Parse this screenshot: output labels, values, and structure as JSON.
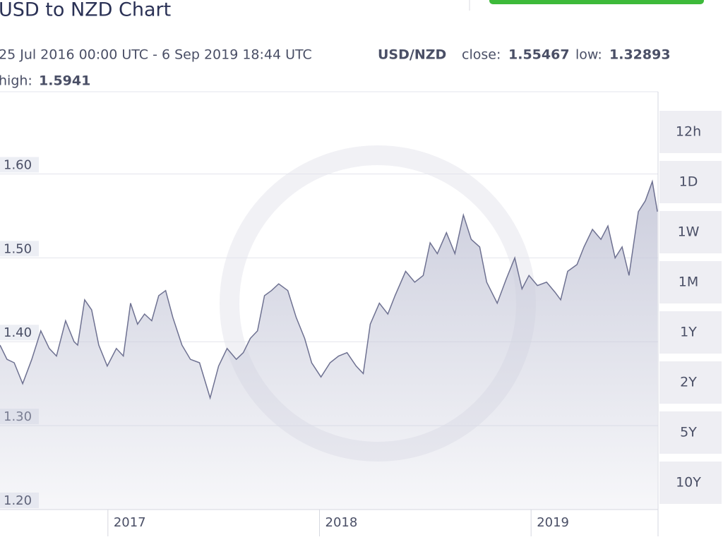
{
  "chart_data": {
    "type": "area",
    "title": "USD to NZD Chart",
    "subtitle": "25 Jul 2016 00:00 UTC - 6 Sep 2019 18:44 UTC",
    "pair": "USD/NZD",
    "stats": [
      {
        "label": "close:",
        "value": 1.55467
      },
      {
        "label": "low:",
        "value": 1.32893
      },
      {
        "label": "high:",
        "value": 1.5941
      }
    ],
    "ranges": [
      "12h",
      "1D",
      "1W",
      "1M",
      "1Y",
      "2Y",
      "5Y",
      "10Y"
    ],
    "color": "#6e7191",
    "fill": "#c9cbdb",
    "x": [
      2016.49,
      2016.523,
      2016.557,
      2016.597,
      2016.64,
      2016.683,
      2016.723,
      2016.757,
      2016.8,
      2016.84,
      2016.857,
      2016.89,
      2016.923,
      2016.957,
      2016.997,
      2017.04,
      2017.073,
      2017.107,
      2017.14,
      2017.173,
      2017.207,
      2017.24,
      2017.273,
      2017.307,
      2017.35,
      2017.39,
      2017.433,
      2017.483,
      2017.523,
      2017.563,
      2017.607,
      2017.64,
      2017.673,
      2017.707,
      2017.74,
      2017.773,
      2017.807,
      2017.85,
      2017.89,
      2017.93,
      2017.963,
      2018.007,
      2018.05,
      2018.09,
      2018.13,
      2018.173,
      2018.207,
      2018.24,
      2018.283,
      2018.323,
      2018.357,
      2018.407,
      2018.45,
      2018.49,
      2018.523,
      2018.557,
      2018.6,
      2018.64,
      2018.68,
      2018.717,
      2018.757,
      2018.79,
      2018.84,
      2018.883,
      2018.923,
      2018.957,
      2018.99,
      2019.03,
      2019.073,
      2019.113,
      2019.14,
      2019.173,
      2019.217,
      2019.25,
      2019.29,
      2019.33,
      2019.363,
      2019.397,
      2019.43,
      2019.463,
      2019.507,
      2019.54,
      2019.573,
      2019.597
    ],
    "values": [
      1.396,
      1.379,
      1.375,
      1.35,
      1.379,
      1.413,
      1.392,
      1.383,
      1.425,
      1.4,
      1.396,
      1.45,
      1.438,
      1.396,
      1.371,
      1.392,
      1.383,
      1.446,
      1.421,
      1.433,
      1.425,
      1.455,
      1.461,
      1.429,
      1.396,
      1.379,
      1.375,
      1.333,
      1.371,
      1.392,
      1.379,
      1.387,
      1.404,
      1.413,
      1.455,
      1.461,
      1.469,
      1.461,
      1.429,
      1.404,
      1.375,
      1.358,
      1.375,
      1.383,
      1.387,
      1.371,
      1.362,
      1.421,
      1.446,
      1.433,
      1.455,
      1.484,
      1.471,
      1.479,
      1.518,
      1.505,
      1.53,
      1.505,
      1.551,
      1.522,
      1.513,
      1.471,
      1.446,
      1.475,
      1.5,
      1.463,
      1.479,
      1.467,
      1.471,
      1.459,
      1.45,
      1.484,
      1.492,
      1.513,
      1.534,
      1.522,
      1.538,
      1.5,
      1.513,
      1.479,
      1.555,
      1.568,
      1.591,
      1.555
    ],
    "xlim": [
      2016.49,
      2019.6
    ],
    "xticks": [
      2017,
      2018,
      2019
    ],
    "ylim": [
      1.2,
      1.698
    ],
    "yticks": [
      {
        "value": 1.2,
        "label": "1.20"
      },
      {
        "value": 1.3,
        "label": "1.30"
      },
      {
        "value": 1.4,
        "label": "1.40"
      },
      {
        "value": 1.5,
        "label": "1.50"
      },
      {
        "value": 1.6,
        "label": "1.60"
      }
    ],
    "grid": true
  }
}
